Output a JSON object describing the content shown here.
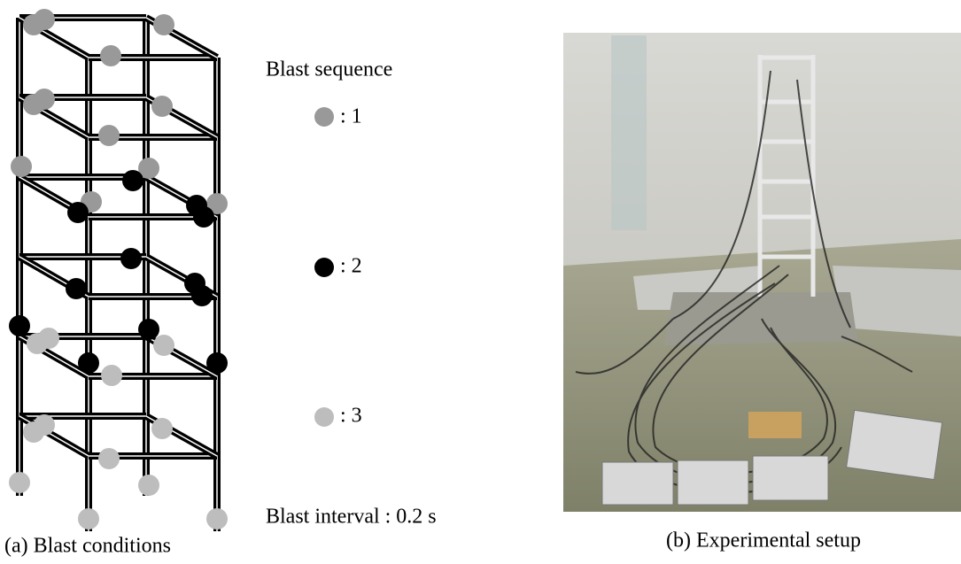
{
  "figure": {
    "legend": {
      "title": "Blast sequence",
      "items": [
        ": 1",
        ": 2",
        ": 3"
      ],
      "interval": "Blast interval : 0.2 s"
    },
    "captions": [
      "(a) Blast conditions",
      "(b) Experimental setup"
    ]
  }
}
